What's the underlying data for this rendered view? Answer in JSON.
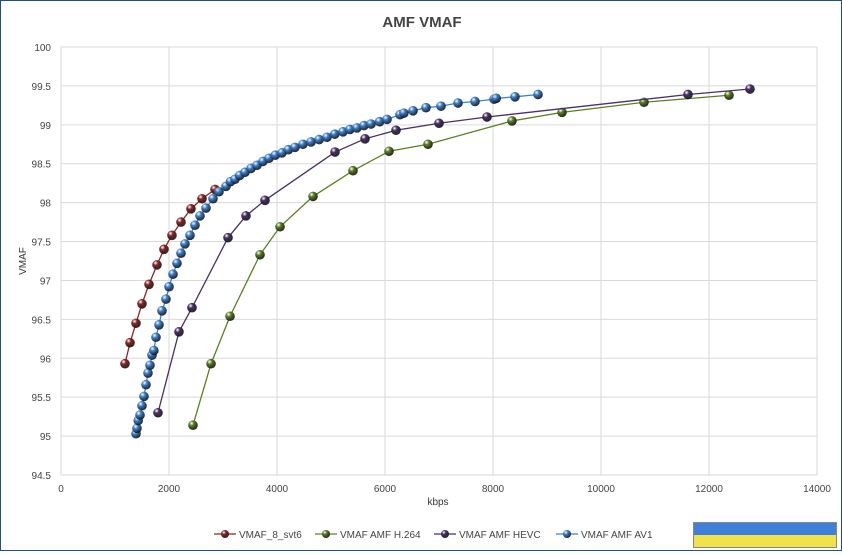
{
  "chart_data": {
    "type": "line",
    "title": "AMF VMAF",
    "xlabel": "kbps",
    "ylabel": "VMAF",
    "xlim": [
      0,
      14000
    ],
    "ylim": [
      94.5,
      100
    ],
    "xticks": [
      0,
      2000,
      4000,
      6000,
      8000,
      10000,
      12000,
      14000
    ],
    "yticks": [
      94.5,
      95,
      95.5,
      96,
      96.5,
      97,
      97.5,
      98,
      98.5,
      99,
      99.5,
      100
    ],
    "grid": true,
    "legend": "bottom",
    "series": [
      {
        "name": "VMAF_8_svt6",
        "color": "#8b2525",
        "points": [
          [
            1185,
            95.93
          ],
          [
            1278,
            96.2
          ],
          [
            1389,
            96.45
          ],
          [
            1500,
            96.7
          ],
          [
            1630,
            96.95
          ],
          [
            1778,
            97.2
          ],
          [
            1907,
            97.4
          ],
          [
            2055,
            97.58
          ],
          [
            2222,
            97.75
          ],
          [
            2407,
            97.92
          ],
          [
            2611,
            98.05
          ],
          [
            2852,
            98.17
          ]
        ]
      },
      {
        "name": "VMAF AMF H.264",
        "color": "#5b8021",
        "points": [
          [
            2444,
            95.14
          ],
          [
            2778,
            95.93
          ],
          [
            3130,
            96.54
          ],
          [
            3685,
            97.33
          ],
          [
            4056,
            97.69
          ],
          [
            4667,
            98.08
          ],
          [
            5407,
            98.41
          ],
          [
            6074,
            98.66
          ],
          [
            6796,
            98.75
          ],
          [
            8352,
            99.05
          ],
          [
            9278,
            99.16
          ],
          [
            10796,
            99.29
          ],
          [
            12370,
            99.38
          ]
        ]
      },
      {
        "name": "VMAF AMF HEVC",
        "color": "#4a2f68",
        "points": [
          [
            1796,
            95.3
          ],
          [
            2185,
            96.34
          ],
          [
            2426,
            96.65
          ],
          [
            3093,
            97.55
          ],
          [
            3426,
            97.83
          ],
          [
            3778,
            98.03
          ],
          [
            5074,
            98.65
          ],
          [
            5630,
            98.82
          ],
          [
            6204,
            98.93
          ],
          [
            7000,
            99.02
          ],
          [
            7889,
            99.1
          ],
          [
            11611,
            99.39
          ],
          [
            12759,
            99.46
          ]
        ]
      },
      {
        "name": "VMAF AMF AV1",
        "color": "#3b82d4",
        "points": [
          [
            1389,
            95.03
          ],
          [
            1407,
            95.1
          ],
          [
            1430,
            95.2
          ],
          [
            1463,
            95.27
          ],
          [
            1500,
            95.39
          ],
          [
            1537,
            95.51
          ],
          [
            1574,
            95.66
          ],
          [
            1611,
            95.81
          ],
          [
            1648,
            95.91
          ],
          [
            1685,
            96.04
          ],
          [
            1720,
            96.1
          ],
          [
            1759,
            96.27
          ],
          [
            1815,
            96.43
          ],
          [
            1870,
            96.61
          ],
          [
            1944,
            96.76
          ],
          [
            2000,
            96.92
          ],
          [
            2074,
            97.08
          ],
          [
            2148,
            97.22
          ],
          [
            2222,
            97.35
          ],
          [
            2296,
            97.47
          ],
          [
            2389,
            97.58
          ],
          [
            2481,
            97.71
          ],
          [
            2574,
            97.83
          ],
          [
            2685,
            97.93
          ],
          [
            2815,
            98.05
          ],
          [
            2926,
            98.14
          ],
          [
            3056,
            98.21
          ],
          [
            3140,
            98.27
          ],
          [
            3222,
            98.3
          ],
          [
            3310,
            98.35
          ],
          [
            3407,
            98.39
          ],
          [
            3520,
            98.44
          ],
          [
            3630,
            98.48
          ],
          [
            3740,
            98.53
          ],
          [
            3852,
            98.57
          ],
          [
            3970,
            98.61
          ],
          [
            4093,
            98.64
          ],
          [
            4210,
            98.68
          ],
          [
            4333,
            98.71
          ],
          [
            4480,
            98.75
          ],
          [
            4630,
            98.78
          ],
          [
            4780,
            98.81
          ],
          [
            4926,
            98.84
          ],
          [
            5070,
            98.88
          ],
          [
            5222,
            98.91
          ],
          [
            5350,
            98.94
          ],
          [
            5481,
            98.96
          ],
          [
            5610,
            98.99
          ],
          [
            5741,
            99.01
          ],
          [
            5900,
            99.04
          ],
          [
            6037,
            99.07
          ],
          [
            6278,
            99.13
          ],
          [
            6350,
            99.15
          ],
          [
            6519,
            99.18
          ],
          [
            6759,
            99.22
          ],
          [
            7037,
            99.24
          ],
          [
            7352,
            99.28
          ],
          [
            7667,
            99.3
          ],
          [
            8019,
            99.33
          ],
          [
            8060,
            99.34
          ],
          [
            8407,
            99.36
          ],
          [
            8833,
            99.39
          ]
        ]
      }
    ]
  }
}
